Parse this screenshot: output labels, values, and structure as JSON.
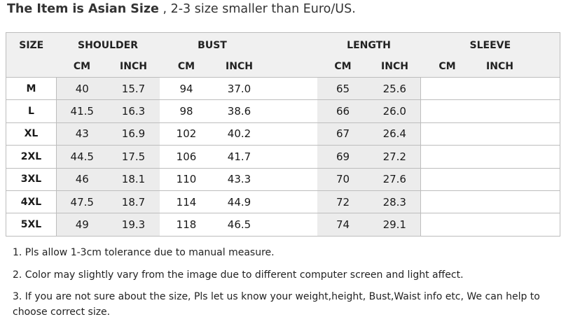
{
  "heading": {
    "bold": "The Item is Asian Size",
    "rest": " , 2-3  size smaller than Euro/US."
  },
  "table": {
    "size_header": "SIZE",
    "groups": [
      "SHOULDER",
      "BUST",
      "LENGTH",
      "SLEEVE"
    ],
    "units": [
      "CM",
      "INCH",
      "CM",
      "INCH",
      "CM",
      "INCH",
      "CM",
      "INCH"
    ],
    "rows": [
      {
        "size": "M",
        "cells": [
          "40",
          "15.7",
          "94",
          "37.0",
          "65",
          "25.6",
          "",
          ""
        ]
      },
      {
        "size": "L",
        "cells": [
          "41.5",
          "16.3",
          "98",
          "38.6",
          "66",
          "26.0",
          "",
          ""
        ]
      },
      {
        "size": "XL",
        "cells": [
          "43",
          "16.9",
          "102",
          "40.2",
          "67",
          "26.4",
          "",
          ""
        ]
      },
      {
        "size": "2XL",
        "cells": [
          "44.5",
          "17.5",
          "106",
          "41.7",
          "69",
          "27.2",
          "",
          ""
        ]
      },
      {
        "size": "3XL",
        "cells": [
          "46",
          "18.1",
          "110",
          "43.3",
          "70",
          "27.6",
          "",
          ""
        ]
      },
      {
        "size": "4XL",
        "cells": [
          "47.5",
          "18.7",
          "114",
          "44.9",
          "72",
          "28.3",
          "",
          ""
        ]
      },
      {
        "size": "5XL",
        "cells": [
          "49",
          "19.3",
          "118",
          "46.5",
          "74",
          "29.1",
          "",
          ""
        ]
      }
    ]
  },
  "notes": [
    "1.  Pls allow 1-3cm tolerance due to manual measure.",
    "2.  Color may slightly vary from the image due to different computer screen and light affect.",
    "3.  If you are not sure about the size, Pls let us know your weight,height, Bust,Waist info etc, We can help to choose correct size."
  ]
}
